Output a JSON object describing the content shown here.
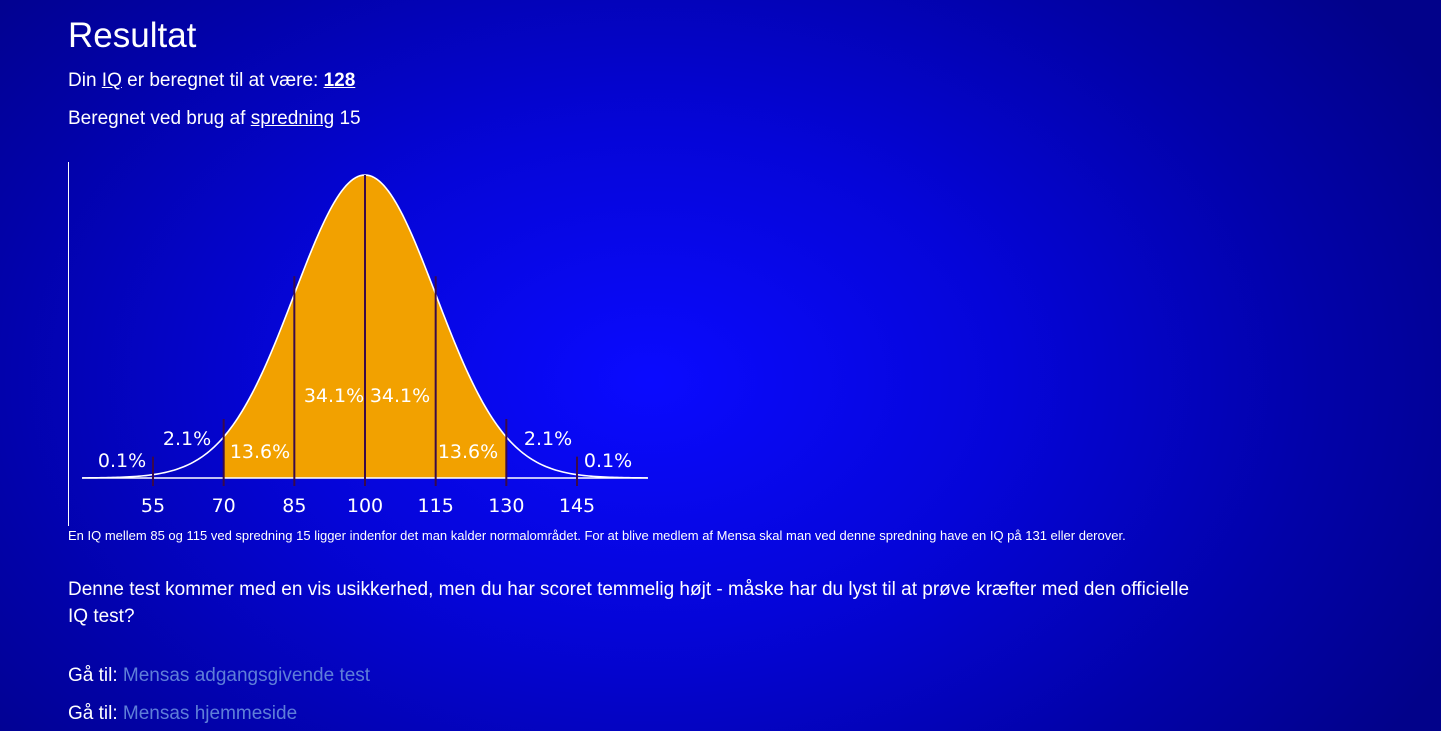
{
  "heading": "Resultat",
  "iq_line": {
    "prefix": "Din",
    "iq_link": "IQ",
    "middle": "er beregnet til at være:",
    "score": "128"
  },
  "spread_line": {
    "prefix": "Beregnet ved brug af",
    "spread_link": "spredning",
    "value": "15"
  },
  "chart_data": {
    "type": "area",
    "x_ticks": [
      "55",
      "70",
      "85",
      "100",
      "115",
      "130",
      "145"
    ],
    "mean": 100,
    "sd": 15,
    "segments": [
      {
        "label": "0.1%",
        "from": 40,
        "to": 55
      },
      {
        "label": "2.1%",
        "from": 55,
        "to": 70
      },
      {
        "label": "13.6%",
        "from": 70,
        "to": 85
      },
      {
        "label": "34.1%",
        "from": 85,
        "to": 100
      },
      {
        "label": "34.1%",
        "from": 100,
        "to": 115
      },
      {
        "label": "13.6%",
        "from": 115,
        "to": 130
      },
      {
        "label": "2.1%",
        "from": 130,
        "to": 145
      },
      {
        "label": "0.1%",
        "from": 145,
        "to": 160
      }
    ],
    "xlim": [
      40,
      160
    ],
    "fill_color": "#f2a100",
    "shaded_range": [
      70,
      130
    ]
  },
  "caption": "En IQ mellem 85 og 115 ved spredning 15 ligger indenfor det man kalder normalområdet. For at blive medlem af Mensa skal man ved denne spredning have en IQ på 131 eller derover.",
  "paragraph": "Denne test kommer med en vis usikkerhed, men du har scoret temmelig højt - måske har du lyst til at prøve kræfter med den officielle IQ test?",
  "links": [
    {
      "prefix": "Gå til:",
      "label": "Mensas adgangsgivende test"
    },
    {
      "prefix": "Gå til:",
      "label": "Mensas hjemmeside"
    }
  ],
  "colors": {
    "background": "#0505d8",
    "link": "#5f7fd8",
    "curve_fill": "#f2a100"
  }
}
